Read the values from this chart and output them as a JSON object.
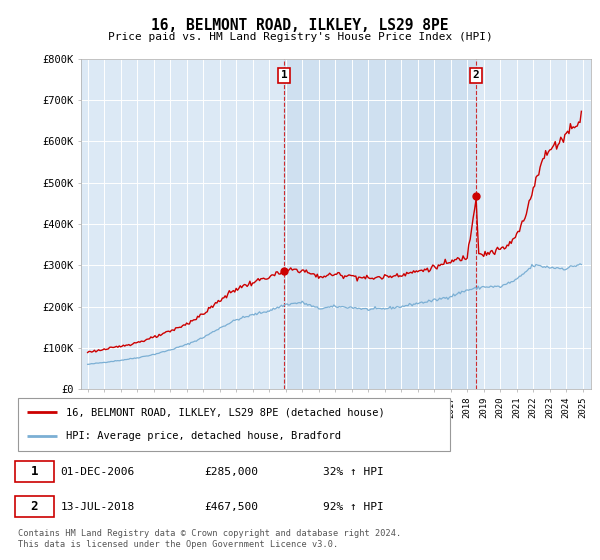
{
  "title": "16, BELMONT ROAD, ILKLEY, LS29 8PE",
  "subtitle": "Price paid vs. HM Land Registry's House Price Index (HPI)",
  "ylim": [
    0,
    800000
  ],
  "yticks": [
    0,
    100000,
    200000,
    300000,
    400000,
    500000,
    600000,
    700000,
    800000
  ],
  "ytick_labels": [
    "£0",
    "£100K",
    "£200K",
    "£300K",
    "£400K",
    "£500K",
    "£600K",
    "£700K",
    "£800K"
  ],
  "hpi_color": "#7bafd4",
  "price_color": "#cc0000",
  "plot_bg": "#dce9f5",
  "highlight_bg": "#cfe0f0",
  "legend_entries": [
    "16, BELMONT ROAD, ILKLEY, LS29 8PE (detached house)",
    "HPI: Average price, detached house, Bradford"
  ],
  "annotation1": {
    "number": "1",
    "date": "01-DEC-2006",
    "price": "£285,000",
    "pct": "32% ↑ HPI"
  },
  "annotation2": {
    "number": "2",
    "date": "13-JUL-2018",
    "price": "£467,500",
    "pct": "92% ↑ HPI"
  },
  "footer": "Contains HM Land Registry data © Crown copyright and database right 2024.\nThis data is licensed under the Open Government Licence v3.0.",
  "vline1_x": 2006.92,
  "vline2_x": 2018.54,
  "marker1_y": 285000,
  "marker2_y": 467500,
  "xlim_left": 1994.6,
  "xlim_right": 2025.5
}
